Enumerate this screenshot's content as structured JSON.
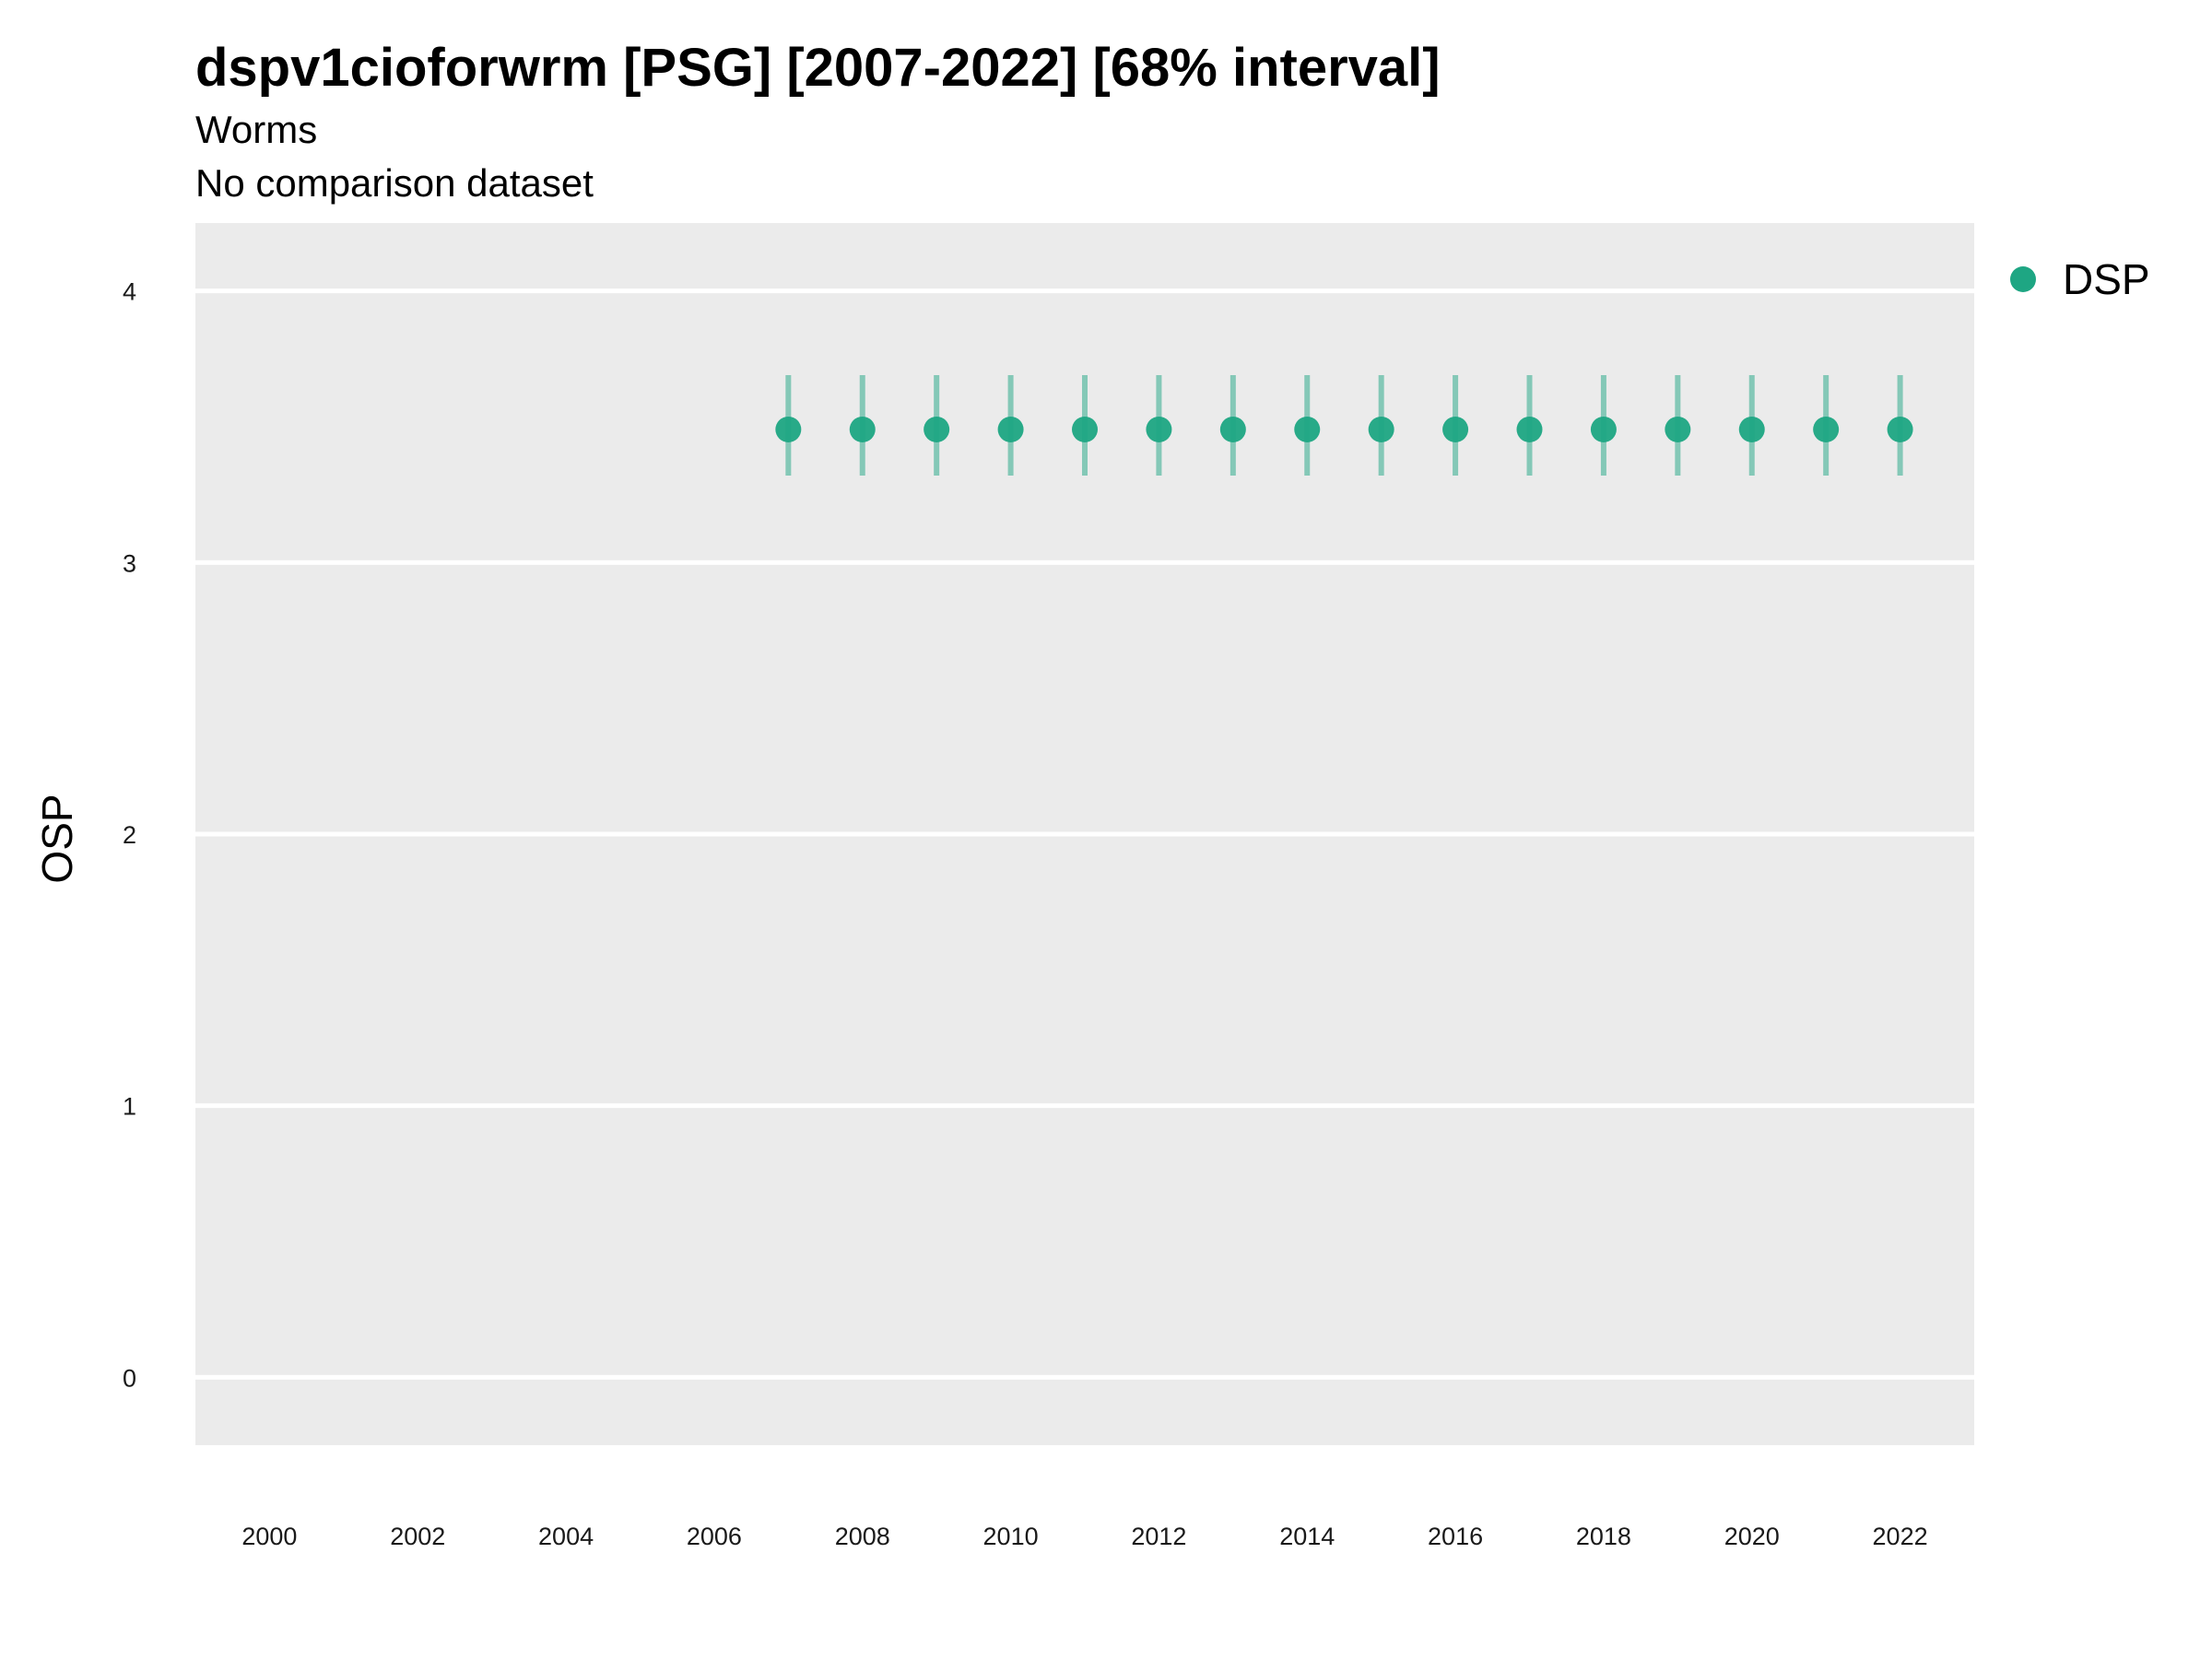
{
  "chart_data": {
    "type": "scatter",
    "title": "dspv1cioforwrm [PSG] [2007-2022] [68% interval]",
    "subtitle": "Worms",
    "subtitle2": "No comparison dataset",
    "xlabel": "",
    "ylabel": "OSP",
    "xlim": [
      1999,
      2023
    ],
    "ylim": [
      -0.25,
      4.25
    ],
    "x_ticks": [
      2000,
      2002,
      2004,
      2006,
      2008,
      2010,
      2012,
      2014,
      2016,
      2018,
      2020,
      2022
    ],
    "y_ticks": [
      0,
      1,
      2,
      3,
      4
    ],
    "grid": true,
    "legend_position": "right-top",
    "series": [
      {
        "name": "DSP",
        "color": "#1ea683",
        "interval": "68%",
        "x": [
          2007,
          2008,
          2009,
          2010,
          2011,
          2012,
          2013,
          2014,
          2015,
          2016,
          2017,
          2018,
          2019,
          2020,
          2021,
          2022
        ],
        "y": [
          3.49,
          3.49,
          3.49,
          3.49,
          3.49,
          3.49,
          3.49,
          3.49,
          3.49,
          3.49,
          3.49,
          3.49,
          3.49,
          3.49,
          3.49,
          3.49
        ],
        "lower": [
          3.32,
          3.32,
          3.32,
          3.32,
          3.32,
          3.32,
          3.32,
          3.32,
          3.32,
          3.32,
          3.32,
          3.32,
          3.32,
          3.32,
          3.32,
          3.32
        ],
        "upper": [
          3.69,
          3.69,
          3.69,
          3.69,
          3.69,
          3.69,
          3.69,
          3.69,
          3.69,
          3.69,
          3.69,
          3.69,
          3.69,
          3.69,
          3.69,
          3.69
        ]
      }
    ]
  }
}
